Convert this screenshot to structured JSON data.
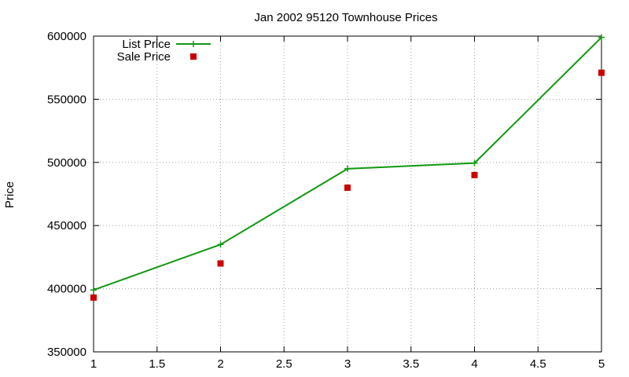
{
  "chart_data": {
    "type": "line",
    "title": "Jan 2002 95120 Townhouse Prices",
    "xlabel": "",
    "ylabel": "Price",
    "xlim": [
      1,
      5
    ],
    "ylim": [
      350000,
      600000
    ],
    "xticks": [
      1,
      1.5,
      2,
      2.5,
      3,
      3.5,
      4,
      4.5,
      5
    ],
    "yticks": [
      350000,
      400000,
      450000,
      500000,
      550000,
      600000
    ],
    "grid": true,
    "legend_position": "top-left",
    "series": [
      {
        "name": "List Price",
        "style": "line-with-plus-markers",
        "color": "#119911",
        "x": [
          1,
          2,
          3,
          4,
          5
        ],
        "y": [
          399000,
          435000,
          495000,
          499500,
          599000
        ]
      },
      {
        "name": "Sale Price",
        "style": "square-markers",
        "color": "#cc0000",
        "x": [
          1,
          2,
          3,
          4,
          5
        ],
        "y": [
          393000,
          420000,
          480000,
          490000,
          571000
        ]
      }
    ]
  }
}
